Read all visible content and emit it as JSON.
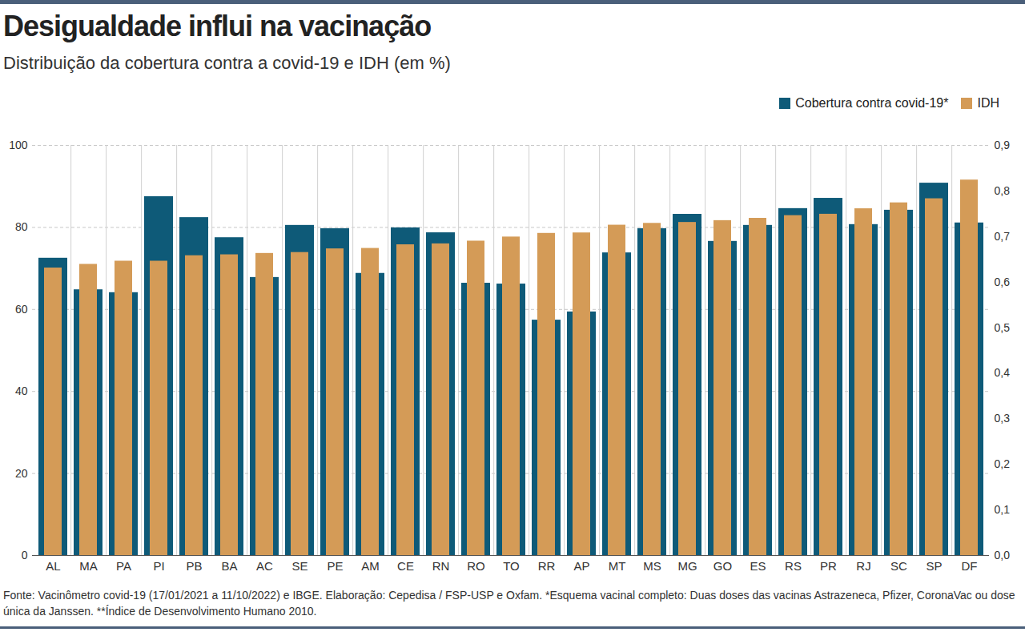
{
  "chart_data": {
    "type": "bar",
    "title": "Desigualdade influi na vacinação",
    "subtitle": "Distribuição da cobertura contra a covid-19 e IDH (em %)",
    "note": "Fonte: Vacinômetro covid-19 (17/01/2021 a 11/10/2022) e IBGE. Elaboração: Cepedisa / FSP-USP e Oxfam. *Esquema vacinal completo: Duas doses das vacinas Astrazeneca, Pfizer, CoronaVac ou dose única da Janssen. **Índice de Desenvolvimento Humano 2010.",
    "categories": [
      "AL",
      "MA",
      "PA",
      "PI",
      "PB",
      "BA",
      "AC",
      "SE",
      "PE",
      "AM",
      "CE",
      "RN",
      "RO",
      "TO",
      "RR",
      "AP",
      "MT",
      "MS",
      "MG",
      "GO",
      "ES",
      "RS",
      "PR",
      "RJ",
      "SC",
      "SP",
      "DF"
    ],
    "series": [
      {
        "name": "Cobertura contra covid-19*",
        "color": "#0e5a78",
        "values": [
          72.5,
          64.8,
          64.1,
          87.5,
          82.4,
          77.5,
          67.8,
          80.5,
          79.7,
          68.8,
          79.9,
          78.7,
          66.4,
          66.2,
          57.4,
          59.4,
          73.8,
          79.7,
          83.2,
          76.6,
          80.5,
          84.6,
          87.1,
          80.7,
          84.2,
          90.8,
          81.1
        ]
      },
      {
        "name": "IDH",
        "color": "#d49b57",
        "axis": "y2",
        "values": [
          0.631,
          0.639,
          0.646,
          0.646,
          0.658,
          0.66,
          0.663,
          0.665,
          0.673,
          0.674,
          0.682,
          0.684,
          0.69,
          0.699,
          0.707,
          0.708,
          0.725,
          0.729,
          0.731,
          0.735,
          0.74,
          0.746,
          0.749,
          0.761,
          0.774,
          0.783,
          0.824
        ]
      }
    ],
    "ylim": [
      0,
      100
    ],
    "yticks": [
      0,
      20,
      40,
      60,
      80,
      100
    ],
    "y2lim": [
      0,
      0.9
    ],
    "y2ticks": [
      {
        "value": 0,
        "label": "0,0"
      },
      {
        "value": 0.1,
        "label": "0,1"
      },
      {
        "value": 0.2,
        "label": "0,2"
      },
      {
        "value": 0.3,
        "label": "0,3"
      },
      {
        "value": 0.4,
        "label": "0,4"
      },
      {
        "value": 0.5,
        "label": "0,5"
      },
      {
        "value": 0.6,
        "label": "0,6"
      },
      {
        "value": 0.7,
        "label": "0,7"
      },
      {
        "value": 0.8,
        "label": "0,8"
      },
      {
        "value": 0.9,
        "label": "0,9"
      }
    ],
    "grid": true,
    "legend": "top-right"
  }
}
